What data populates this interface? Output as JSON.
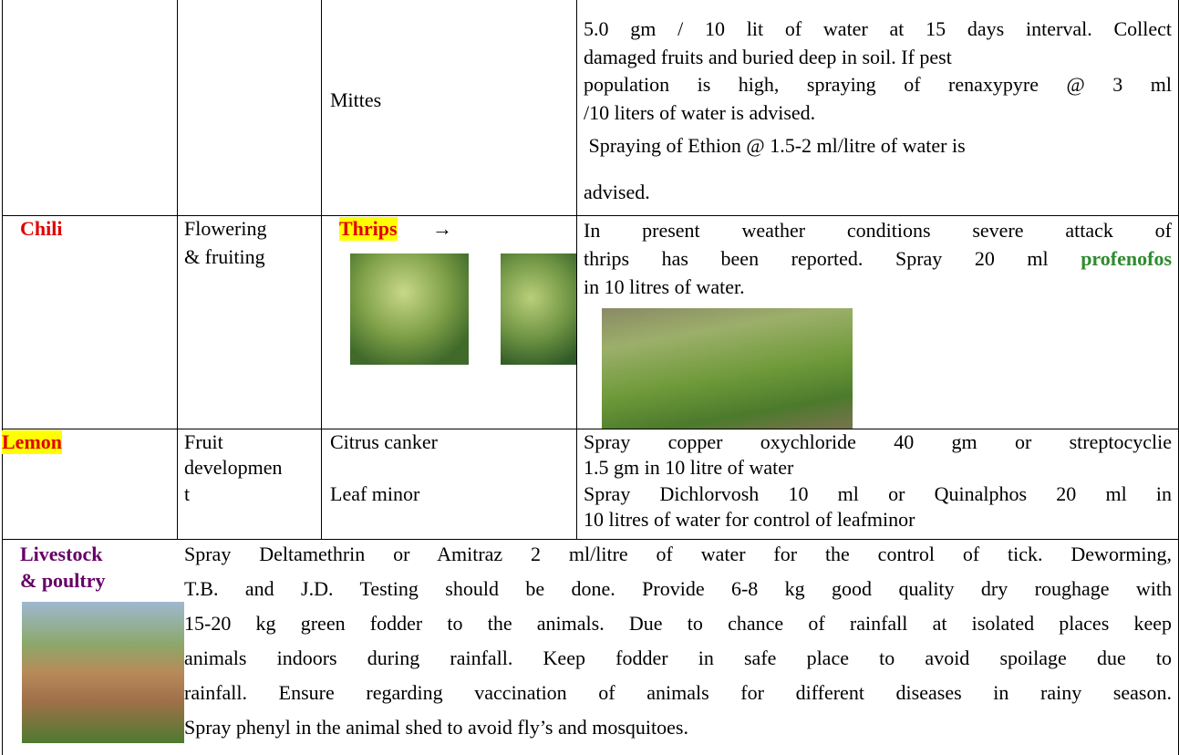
{
  "table": {
    "rows": [
      {
        "pest": "Mittes",
        "advice": [
          "5.0 gm / 10 lit of water at 15 days interval. Collect",
          "damaged fruits and buried deep in soil. If pest",
          "population is high, spraying of renaxypyre  @ 3 ml",
          "/10 liters of water is advised.",
          " Spraying of Ethion @ 1.5-2 ml/litre of water is",
          "advised."
        ]
      },
      {
        "crop": "Chili",
        "stage": [
          "Flowering",
          "& fruiting"
        ],
        "pest": "Thrips",
        "arrow": "→",
        "advice": [
          "In present weather conditions severe attack of",
          "thrips has been reported. Spray 20 ml",
          "in 10 litres of water."
        ],
        "chemical": "profenofos"
      },
      {
        "crop": "Lemon",
        "stage": [
          "Fruit",
          "developmen",
          "t"
        ],
        "pests": [
          "Citrus canker",
          "Leaf minor"
        ],
        "advice": [
          "Spray copper oxychloride 40 gm or streptocyclie",
          "1.5 gm in 10 litre of water",
          "Spray Dichlorvosh 10 ml or Quinalphos 20 ml in",
          "10 litres of water for control of leafminor"
        ]
      },
      {
        "crop": [
          "Livestock",
          "& poultry"
        ],
        "advice": [
          "Spray Deltamethrin or Amitraz 2 ml/litre of water for the control of tick. Deworming,",
          "T.B. and J.D. Testing should be done. Provide 6-8 kg good quality dry roughage with",
          "15-20 kg green fodder to the animals. Due to chance of  rainfall at isolated places keep",
          "animals indoors during rainfall. Keep fodder in safe place to avoid spoilage due to",
          "rainfall. Ensure regarding vaccination of animals for different diseases in rainy season.",
          "Spray phenyl in the animal shed to avoid fly’s and mosquitoes."
        ]
      }
    ]
  }
}
